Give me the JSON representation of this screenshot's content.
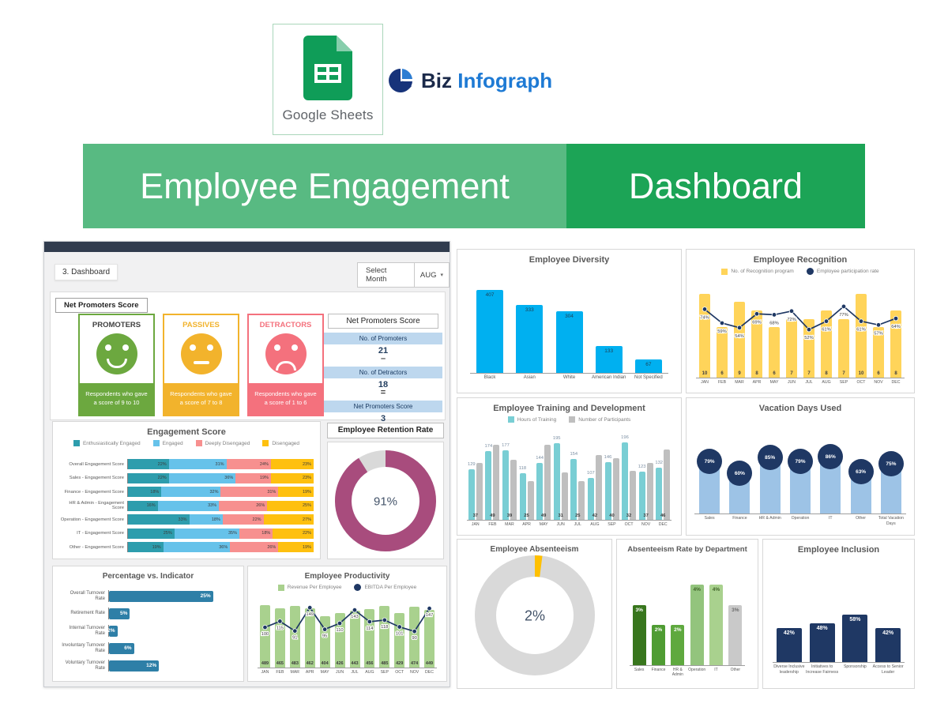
{
  "header": {
    "sheets_label": "Google Sheets",
    "brand_first": "Biz",
    "brand_second": "Infograph"
  },
  "banner": {
    "left_text": "Employee Engagement",
    "right_text": "Dashboard",
    "left_color": "#58BA82",
    "right_color": "#1CA456"
  },
  "panel": {
    "tab_label": "3. Dashboard",
    "select_month_label": "Select Month",
    "selected_month": "AUG",
    "nps_section_title": "Net Promoters Score",
    "face_cards": [
      {
        "title": "PROMOTERS",
        "title_color": "#404040",
        "color": "#6CA83F",
        "face": "happy",
        "desc": "Respondents who gave a score of 9 to 10"
      },
      {
        "title": "PASSIVES",
        "title_color": "#F2B32C",
        "color": "#F2B32C",
        "face": "neutral",
        "desc": "Respondents who gave a score of 7 to 8"
      },
      {
        "title": "DETRACTORS",
        "title_color": "#F4717D",
        "color": "#F4717D",
        "face": "sad",
        "desc": "Respondents who gave a score of 1 to 6"
      }
    ],
    "nps_panel": {
      "title": "Net Promoters Score",
      "row_bg": "#BDD7EE",
      "rows": [
        {
          "label": "No. of Promoters",
          "value": "21",
          "op": "–"
        },
        {
          "label": "No. of Detractors",
          "value": "18",
          "op": "="
        },
        {
          "label": "Net Promoters Score",
          "value": "3",
          "op": ""
        }
      ]
    }
  },
  "chart_data": [
    {
      "id": "engagement_score",
      "type": "bar",
      "subtype": "stacked-horizontal",
      "title": "Engagement Score",
      "legend": [
        "Enthusiastically Engaged",
        "Engaged",
        "Deeply Disengaged",
        "Disengaged"
      ],
      "colors": [
        "#2D9DAD",
        "#66C2EA",
        "#F7908F",
        "#FEC00F"
      ],
      "value_suffix": "%",
      "rows": [
        {
          "category": "Overall Engagement Score",
          "values": [
            22,
            31,
            24,
            23
          ]
        },
        {
          "category": "Sales - Engagement Score",
          "values": [
            22,
            36,
            19,
            23
          ]
        },
        {
          "category": "Finance - Engagement Score",
          "values": [
            18,
            32,
            31,
            19
          ]
        },
        {
          "category": "HR & Admin - Engagement Score",
          "values": [
            16,
            33,
            26,
            25
          ]
        },
        {
          "category": "Operation - Engagement Score",
          "values": [
            33,
            18,
            22,
            27
          ]
        },
        {
          "category": "IT - Engagement Score",
          "values": [
            25,
            35,
            18,
            22
          ]
        },
        {
          "category": "Other - Engagement Score",
          "values": [
            19,
            36,
            26,
            19
          ]
        }
      ]
    },
    {
      "id": "retention_rate",
      "type": "pie",
      "subtype": "donut",
      "title": "Employee Retention Rate",
      "value": 91,
      "label": "91%",
      "color": "#A84C7D",
      "rest_color": "#D9D9D9"
    },
    {
      "id": "percentage_vs_indicator",
      "type": "bar",
      "subtype": "horizontal",
      "title": "Percentage vs. Indicator",
      "categories": [
        "Overall Turnover Rate",
        "Retirement Rate",
        "Internal Turnover Rate",
        "Involuntary Turnover Rate",
        "Voluntary Turnover Rate"
      ],
      "values": [
        25,
        5,
        2,
        6,
        12
      ],
      "labels": [
        "25%",
        "5%",
        "2%",
        "6%",
        "12%"
      ],
      "color": "#2E7FA7",
      "xmax": 30
    },
    {
      "id": "employee_productivity",
      "type": "bar",
      "subtype": "combo",
      "title": "Employee Productivity",
      "legend": [
        "Revenue Per Employee",
        "EBITDA Per Employee"
      ],
      "bar_color": "#A9D18E",
      "line_color": "#1F3864",
      "categories": [
        "JAN",
        "FEB",
        "MAR",
        "APR",
        "MAY",
        "JUN",
        "JUL",
        "AUG",
        "SEP",
        "OCT",
        "NOV",
        "DEC"
      ],
      "bar_values": [
        489,
        465,
        483,
        462,
        404,
        426,
        443,
        456,
        485,
        429,
        474,
        449
      ],
      "line_values": [
        100,
        115,
        91,
        149,
        95,
        110,
        143,
        114,
        118,
        101,
        90,
        147
      ],
      "bar_max": 520,
      "line_max": 165
    },
    {
      "id": "employee_diversity",
      "type": "bar",
      "title": "Employee Diversity",
      "categories": [
        "Black",
        "Asian",
        "White",
        "American Indian",
        "Not Specified"
      ],
      "values": [
        407,
        333,
        304,
        133,
        67
      ],
      "labels": [
        "407",
        "333",
        "304",
        "133",
        "67"
      ],
      "color": "#00B0F0",
      "ymax": 450
    },
    {
      "id": "employee_recognition",
      "type": "bar",
      "subtype": "combo",
      "title": "Employee Recognition",
      "legend": [
        "No. of Recognition program",
        "Employee participation rate"
      ],
      "bar_color": "#FFD45A",
      "line_color": "#1F3864",
      "categories": [
        "JAN",
        "FEB",
        "MAR",
        "APR",
        "MAY",
        "JUN",
        "JUL",
        "AUG",
        "SEP",
        "OCT",
        "NOV",
        "DEC"
      ],
      "bar_values": [
        10,
        6,
        9,
        8,
        6,
        7,
        7,
        8,
        7,
        10,
        6,
        8
      ],
      "line_values": [
        74,
        59,
        54,
        69,
        68,
        72,
        52,
        61,
        77,
        61,
        57,
        64
      ],
      "line_labels": [
        "74%",
        "59%",
        "54%",
        "69%",
        "68%",
        "72%",
        "52%",
        "61%",
        "77%",
        "61%",
        "57%",
        "64%"
      ],
      "bar_max": 11,
      "line_max": 100
    },
    {
      "id": "training_development",
      "type": "bar",
      "subtype": "grouped-dual-axis",
      "title": "Employee Training and Development",
      "legend": [
        "Hours of Training",
        "Number of Participants"
      ],
      "colors": [
        "#79CED4",
        "#BFBFBF"
      ],
      "categories": [
        "JAN",
        "FEB",
        "MAR",
        "APR",
        "MAY",
        "JUN",
        "JUL",
        "AUG",
        "SEP",
        "OCT",
        "NOV",
        "DEC"
      ],
      "series": [
        {
          "name": "Hours of Training",
          "values": [
            129,
            174,
            177,
            118,
            144,
            195,
            154,
            107,
            146,
            196,
            123,
            132
          ]
        },
        {
          "name": "Number of Participants",
          "values": [
            37,
            49,
            39,
            25,
            49,
            31,
            25,
            42,
            40,
            32,
            37,
            46
          ]
        }
      ],
      "primary_max": 215,
      "secondary_max": 55
    },
    {
      "id": "vacation_days_used",
      "type": "bar",
      "title": "Vacation Days Used",
      "categories": [
        "Sales",
        "Finance",
        "HR & Admin",
        "Operation",
        "IT",
        "Other",
        "Total Vacation Days"
      ],
      "values": [
        79,
        60,
        85,
        79,
        86,
        63,
        75
      ],
      "labels": [
        "79%",
        "60%",
        "85%",
        "79%",
        "86%",
        "63%",
        "75%"
      ],
      "bar_color": "#9DC3E6",
      "badge_color": "#1F3864",
      "ymax": 130
    },
    {
      "id": "employee_absenteeism",
      "type": "pie",
      "subtype": "donut",
      "title": "Employee Absenteeism",
      "value": 2,
      "label": "2%",
      "color": "#FFC000",
      "rest_color": "#D9D9D9"
    },
    {
      "id": "absenteeism_by_department",
      "type": "bar",
      "title": "Absenteeism Rate by Department",
      "categories": [
        "Sales",
        "Finance",
        "HR & Admin",
        "Operation",
        "IT",
        "Other"
      ],
      "values": [
        3,
        2,
        2,
        4,
        4,
        3
      ],
      "labels": [
        "3%",
        "2%",
        "2%",
        "4%",
        "4%",
        "3%"
      ],
      "colors": [
        "#38761D",
        "#4F9C33",
        "#5FA93F",
        "#93C47D",
        "#A9D18E",
        "#C9C9C9"
      ],
      "label_colors": [
        "#FFFFFF",
        "#FFFFFF",
        "#FFFFFF",
        "#3F6328",
        "#3F6328",
        "#6B6B6B"
      ],
      "ymax": 4.6
    },
    {
      "id": "employee_inclusion",
      "type": "bar",
      "title": "Employee Inclusion",
      "categories": [
        "Diverse Inclusive leadership",
        "Initiatives to Increase Fairness",
        "Sponsorship",
        "Access to Senior Leader"
      ],
      "values": [
        42,
        48,
        58,
        42
      ],
      "labels": [
        "42%",
        "48%",
        "58%",
        "42%"
      ],
      "color": "#1F3864",
      "ymax": 105
    }
  ]
}
